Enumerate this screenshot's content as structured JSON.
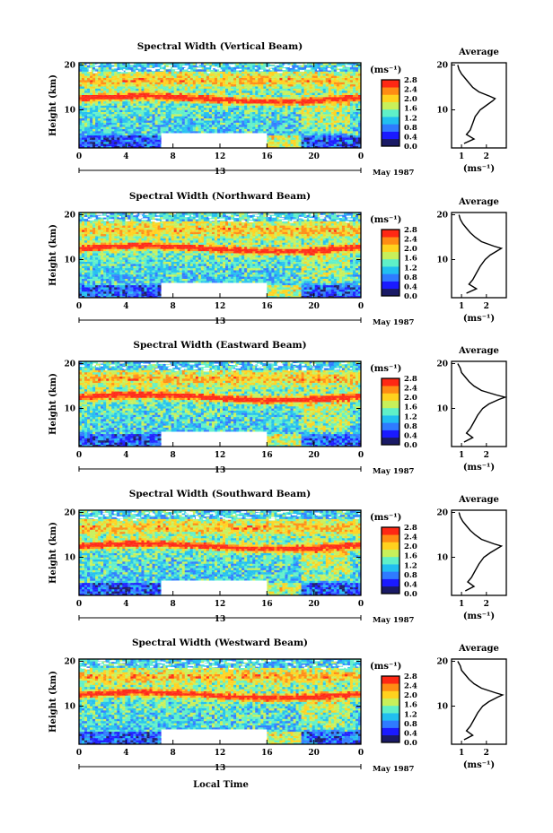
{
  "figure": {
    "xlabel": "Local Time",
    "ylabel": "Height (km)",
    "date_label": "May 1987",
    "day_marker": "13",
    "cbar_unit": "(ms⁻¹)",
    "avg_title": "Average",
    "avg_xlabel": "(ms⁻¹)",
    "x_ticks": [
      "0",
      "4",
      "8",
      "12",
      "16",
      "20",
      "0"
    ],
    "y_ticks": [
      "20",
      "10"
    ],
    "cbar_ticks": [
      "2.8",
      "2.4",
      "2.0",
      "1.6",
      "1.2",
      "0.8",
      "0.4",
      "0.0"
    ]
  },
  "chart_data": [
    {
      "type": "heatmap",
      "title": "Spectral Width (Vertical Beam)",
      "xlabel": "Local Time",
      "ylabel": "Height (km)",
      "xlim": [
        0,
        24
      ],
      "ylim": [
        1.5,
        20.5
      ],
      "zlim": [
        0,
        2.8
      ],
      "data_gap": {
        "x": [
          7,
          16
        ],
        "y": [
          1.5,
          4.8
        ]
      },
      "layer_height_km": 12.5,
      "profile": {
        "title": "Average",
        "xlabel": "(ms⁻¹)",
        "xticks": [
          1,
          2
        ],
        "ylim": [
          1.5,
          20.5
        ],
        "heights": [
          2.5,
          3.5,
          4.5,
          5.5,
          7,
          8.5,
          10,
          11,
          12,
          12.5,
          13,
          14,
          15,
          16,
          17,
          18,
          19,
          20
        ],
        "widths": [
          1.1,
          1.5,
          1.2,
          1.35,
          1.45,
          1.55,
          1.75,
          2.0,
          2.25,
          2.35,
          2.15,
          1.7,
          1.45,
          1.3,
          1.15,
          1.0,
          0.9,
          0.85
        ]
      }
    },
    {
      "type": "heatmap",
      "title": "Spectral Width (Northward Beam)",
      "xlabel": "Local Time",
      "ylabel": "Height (km)",
      "xlim": [
        0,
        24
      ],
      "ylim": [
        1.5,
        20.5
      ],
      "zlim": [
        0,
        2.8
      ],
      "data_gap": {
        "x": [
          7,
          16
        ],
        "y": [
          1.5,
          4.8
        ]
      },
      "layer_height_km": 12.5,
      "profile": {
        "title": "Average",
        "xlabel": "(ms⁻¹)",
        "xticks": [
          1,
          2
        ],
        "ylim": [
          1.5,
          20.5
        ],
        "heights": [
          2.5,
          3.5,
          4.5,
          5.5,
          7,
          8.5,
          10,
          11,
          12,
          12.5,
          13,
          14,
          15,
          16,
          17,
          18,
          19,
          20
        ],
        "widths": [
          1.2,
          1.6,
          1.3,
          1.45,
          1.6,
          1.75,
          1.95,
          2.15,
          2.45,
          2.6,
          2.3,
          1.8,
          1.55,
          1.35,
          1.2,
          1.05,
          0.95,
          0.9
        ]
      }
    },
    {
      "type": "heatmap",
      "title": "Spectral Width (Eastward Beam)",
      "xlabel": "Local Time",
      "ylabel": "Height (km)",
      "xlim": [
        0,
        24
      ],
      "ylim": [
        1.5,
        20.5
      ],
      "zlim": [
        0,
        2.8
      ],
      "data_gap": {
        "x": [
          7,
          16
        ],
        "y": [
          1.5,
          4.8
        ]
      },
      "layer_height_km": 12.5,
      "profile": {
        "title": "Average",
        "xlabel": "(ms⁻¹)",
        "xticks": [
          1,
          2
        ],
        "ylim": [
          1.5,
          20.5
        ],
        "heights": [
          2.5,
          3.5,
          4.5,
          5.5,
          7,
          8.5,
          10,
          11,
          12,
          12.5,
          13,
          14,
          15,
          16,
          17,
          18,
          19,
          20
        ],
        "widths": [
          1.1,
          1.45,
          1.2,
          1.35,
          1.5,
          1.65,
          1.85,
          2.1,
          2.5,
          2.75,
          2.4,
          1.8,
          1.5,
          1.3,
          1.15,
          1.0,
          0.95,
          0.85
        ]
      }
    },
    {
      "type": "heatmap",
      "title": "Spectral Width (Southward Beam)",
      "xlabel": "Local Time",
      "ylabel": "Height (km)",
      "xlim": [
        0,
        24
      ],
      "ylim": [
        1.5,
        20.5
      ],
      "zlim": [
        0,
        2.8
      ],
      "data_gap": {
        "x": [
          7,
          16
        ],
        "y": [
          1.5,
          4.8
        ]
      },
      "layer_height_km": 12.5,
      "profile": {
        "title": "Average",
        "xlabel": "(ms⁻¹)",
        "xticks": [
          1,
          2
        ],
        "ylim": [
          1.5,
          20.5
        ],
        "heights": [
          2.5,
          3.5,
          4.5,
          5.5,
          7,
          8.5,
          10,
          11,
          12,
          12.5,
          13,
          14,
          15,
          16,
          17,
          18,
          19,
          20
        ],
        "widths": [
          1.15,
          1.5,
          1.25,
          1.4,
          1.55,
          1.7,
          1.9,
          2.15,
          2.45,
          2.6,
          2.3,
          1.8,
          1.55,
          1.35,
          1.2,
          1.05,
          0.95,
          0.9
        ]
      }
    },
    {
      "type": "heatmap",
      "title": "Spectral Width (Westward Beam)",
      "xlabel": "Local Time",
      "ylabel": "Height (km)",
      "xlim": [
        0,
        24
      ],
      "ylim": [
        1.5,
        20.5
      ],
      "zlim": [
        0,
        2.8
      ],
      "data_gap": {
        "x": [
          7,
          16
        ],
        "y": [
          1.5,
          4.8
        ]
      },
      "layer_height_km": 12.5,
      "profile": {
        "title": "Average",
        "xlabel": "(ms⁻¹)",
        "xticks": [
          1,
          2
        ],
        "ylim": [
          1.5,
          20.5
        ],
        "heights": [
          2.5,
          3.5,
          4.5,
          5.5,
          7,
          8.5,
          10,
          11,
          12,
          12.5,
          13,
          14,
          15,
          16,
          17,
          18,
          19,
          20
        ],
        "widths": [
          1.1,
          1.45,
          1.2,
          1.35,
          1.5,
          1.65,
          1.85,
          2.1,
          2.45,
          2.65,
          2.35,
          1.8,
          1.5,
          1.3,
          1.15,
          1.0,
          0.95,
          0.85
        ]
      }
    }
  ],
  "colormap": [
    "#1a1a66",
    "#1a1aff",
    "#2f7bff",
    "#21bff0",
    "#5ff0c8",
    "#c8f05a",
    "#ffd21e",
    "#ff8c14",
    "#ff2814"
  ]
}
